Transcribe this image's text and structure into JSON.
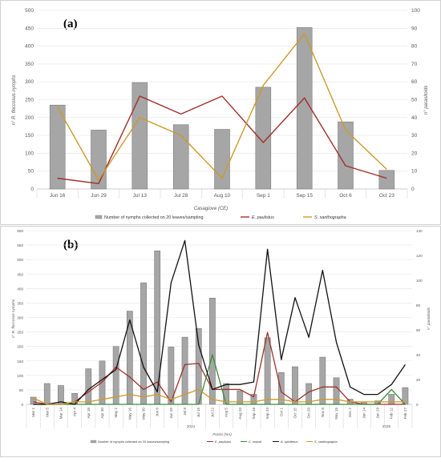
{
  "chart_data": [
    {
      "type": "bar+line",
      "panel_label": "(a)",
      "categories": [
        "Jun 16",
        "Jun 29",
        "Jul 13",
        "Jul 28",
        "Aug 10",
        "Sep 1",
        "Sep 15",
        "Oct 6",
        "Oct 23"
      ],
      "xlabel": "Casagiove (CE)",
      "ylabel_left": "n° R. floccosus nymphs",
      "ylabel_right": "n° parasitoids",
      "ylim_left": [
        0,
        500
      ],
      "ylim_right": [
        0,
        100
      ],
      "yticks_left": [
        "0",
        "50",
        "100",
        "150",
        "200",
        "250",
        "300",
        "350",
        "400",
        "450",
        "500"
      ],
      "yticks_right": [
        "0",
        "10",
        "20",
        "30",
        "40",
        "50",
        "60",
        "70",
        "80",
        "90",
        "100"
      ],
      "bars": {
        "name": "Number of nymphs collected on 20 leaves/sampling",
        "color": "#a6a6a6",
        "values": [
          235,
          165,
          298,
          180,
          167,
          285,
          452,
          188,
          52
        ]
      },
      "series": [
        {
          "name": "E. paulistus",
          "color": "#a0302a",
          "axis": "right",
          "values": [
            6,
            3,
            52,
            42,
            52,
            26,
            51,
            13,
            6
          ]
        },
        {
          "name": "S. xanthographa",
          "color": "#cc9a2a",
          "axis": "right",
          "values": [
            46,
            5,
            40,
            30,
            6,
            58,
            87,
            33,
            11
          ]
        }
      ],
      "legend_position": "bottom"
    },
    {
      "type": "bar+line",
      "panel_label": "(b)",
      "categories": [
        "Mar 1",
        "Mar 5",
        "Mar 14",
        "Apr 4",
        "Apr 18",
        "Apr 30",
        "May 2",
        "May 16",
        "May 30",
        "Jun 6",
        "Jun 20",
        "Jul 8",
        "Jul 15",
        "Jul 22",
        "Aug 5",
        "Aug 20",
        "Sep 16",
        "Sep 23",
        "Oct 1",
        "Oct 15",
        "Oct 29",
        "Nov 8",
        "Nov 15",
        "Dec 2",
        "Jan 14",
        "Jan 29",
        "Feb 12",
        "Feb 27"
      ],
      "year_labels": [
        "2024",
        "2025"
      ],
      "xlabel": "Portici (NA)",
      "ylabel_left": "n° R. floccosus nymphs",
      "ylabel_right": "n° parasitoids",
      "ylim_left": [
        0,
        600
      ],
      "ylim_right": [
        0,
        140
      ],
      "yticks_left": [
        "0",
        "50",
        "100",
        "150",
        "200",
        "250",
        "300",
        "350",
        "400",
        "450",
        "500",
        "550",
        "600"
      ],
      "yticks_right": [
        "0",
        "20",
        "40",
        "60",
        "80",
        "100",
        "120",
        "140"
      ],
      "bars": {
        "name": "Number of nymphs collected on 20 leaves/sampling",
        "color": "#a6a6a6",
        "values": [
          25,
          72,
          65,
          38,
          123,
          150,
          200,
          322,
          420,
          530,
          198,
          232,
          262,
          367,
          72,
          47,
          35,
          230,
          110,
          130,
          72,
          163,
          92,
          18,
          8,
          12,
          35,
          58
        ]
      },
      "series": [
        {
          "name": "E. paulistus",
          "color": "#a0302a",
          "axis": "right",
          "values": [
            2,
            0,
            0,
            2,
            10,
            18,
            30,
            22,
            12,
            18,
            2,
            32,
            33,
            12,
            12,
            12,
            6,
            58,
            10,
            2,
            10,
            14,
            14,
            2,
            0,
            0,
            0,
            0
          ]
        },
        {
          "name": "C. noacki",
          "color": "#3a8a3a",
          "axis": "right",
          "values": [
            0,
            0,
            0,
            0,
            0,
            0,
            0,
            0,
            0,
            0,
            0,
            0,
            0,
            40,
            0,
            0,
            0,
            0,
            0,
            0,
            0,
            0,
            0,
            0,
            0,
            0,
            12,
            0
          ]
        },
        {
          "name": "A. spiniferus",
          "color": "#111111",
          "axis": "right",
          "values": [
            0,
            0,
            2,
            0,
            12,
            20,
            28,
            68,
            30,
            10,
            98,
            132,
            48,
            12,
            16,
            16,
            18,
            125,
            36,
            86,
            54,
            108,
            50,
            14,
            8,
            8,
            16,
            32
          ]
        },
        {
          "name": "S. xanthographa",
          "color": "#cc9a2a",
          "axis": "right",
          "values": [
            5,
            0,
            0,
            2,
            2,
            4,
            6,
            8,
            6,
            8,
            4,
            8,
            12,
            4,
            2,
            2,
            2,
            4,
            4,
            2,
            2,
            4,
            4,
            2,
            2,
            2,
            2,
            2
          ]
        }
      ],
      "legend_position": "bottom"
    }
  ]
}
